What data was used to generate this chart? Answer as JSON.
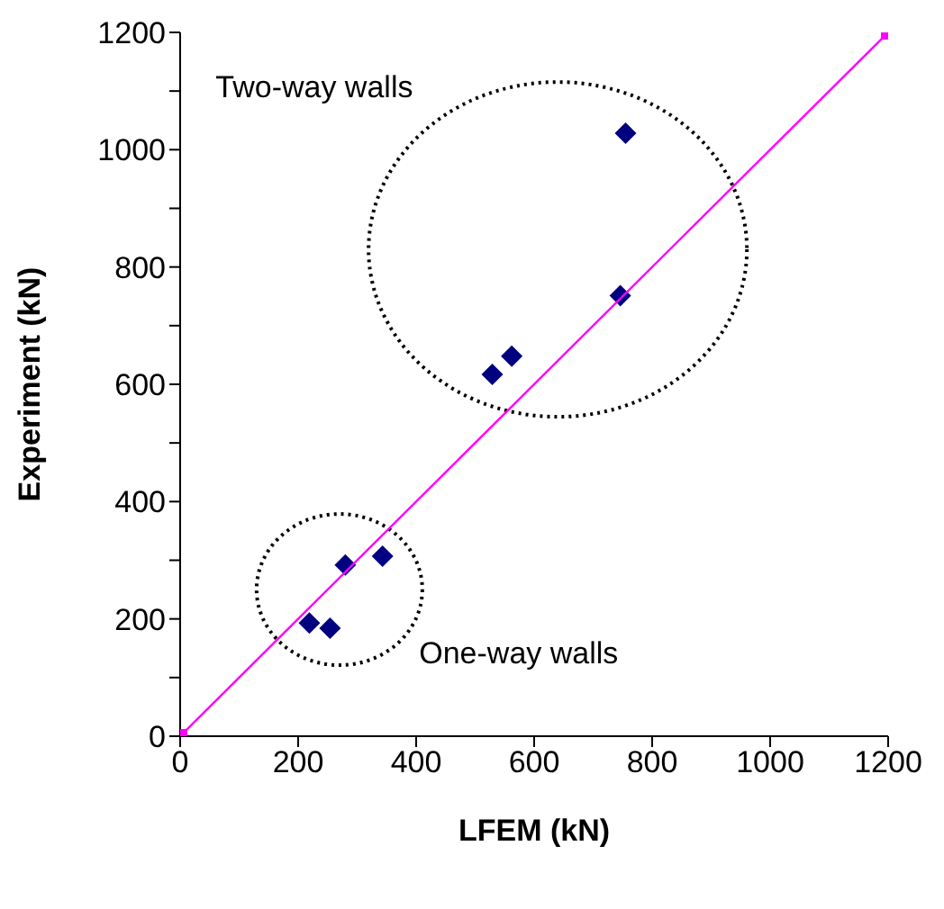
{
  "chart_data": {
    "type": "scatter",
    "xlabel": "LFEM (kN)",
    "ylabel": "Experiment (kN)",
    "xlim": [
      0,
      1200
    ],
    "xticks": [
      0,
      200,
      400,
      600,
      800,
      1000,
      1200
    ],
    "ylim": [
      0,
      1200
    ],
    "yticks": [
      0,
      {
        "value": 100,
        "label": null
      },
      200,
      {
        "value": 300,
        "label": null
      },
      400,
      {
        "value": 500,
        "label": null
      },
      600,
      {
        "value": 700,
        "label": null
      },
      800,
      {
        "value": 900,
        "label": null
      },
      1000,
      {
        "value": 1100,
        "label": null
      },
      1200
    ],
    "annotations": [
      "Two-way walls",
      "One-way walls"
    ],
    "series": [
      {
        "color": "#000080",
        "marker": "diamond",
        "x": [
          219,
          254,
          280,
          343,
          529,
          562,
          746,
          755
        ],
        "values": [
          193,
          184,
          292,
          307,
          617,
          648,
          751,
          1028
        ]
      },
      {
        "type": "line",
        "color": "#ff00ff",
        "marker": "square",
        "x": [
          0,
          1200
        ],
        "values": [
          0,
          1200
        ]
      }
    ]
  }
}
